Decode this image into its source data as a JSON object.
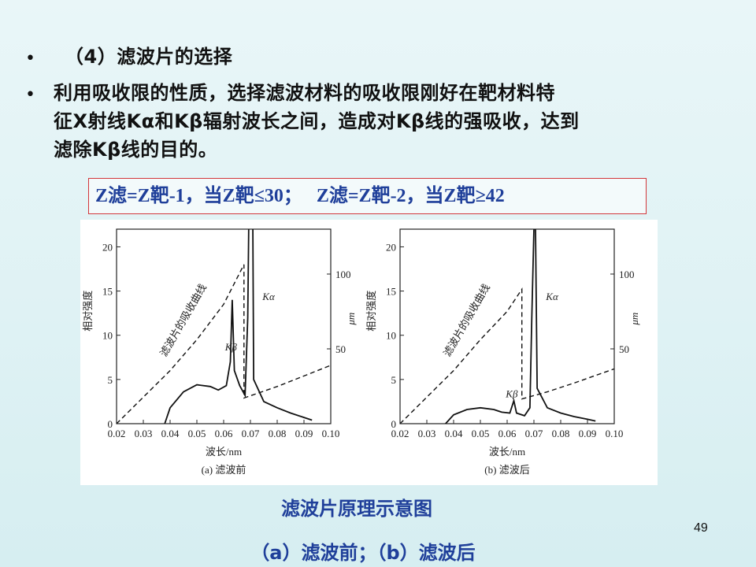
{
  "bullets": [
    {
      "text": "（4）滤波片的选择"
    },
    {
      "lines": [
        "利用吸收限的性质，选择滤波材料的吸收限刚好在靶材料特",
        "征X射线Kα和Kβ辐射波长之间，造成对Kβ线的强吸收，达到",
        "滤除Kβ线的目的。"
      ]
    }
  ],
  "formula": {
    "part1": "Z滤=Z靶-1，当Z靶≤30；",
    "part2": "Z滤=Z靶-2，当Z靶≥42"
  },
  "caption": {
    "title": "滤波片原理示意图",
    "subtitle": "（a）滤波前；（b）滤波后"
  },
  "page_number": "49",
  "chart_data": [
    {
      "type": "line",
      "panel_label": "(a) 滤波前",
      "xlabel": "波长/nm",
      "ylabel_left": "相对强度",
      "ylabel_right": "μm",
      "x_ticks": [
        "0.02",
        "0.03",
        "0.04",
        "0.05",
        "0.06",
        "0.07",
        "0.08",
        "0.09",
        "0.10"
      ],
      "y_ticks_left": [
        "0",
        "5",
        "10",
        "15",
        "20"
      ],
      "y_ticks_right": [
        "50",
        "100"
      ],
      "xlim": [
        0.02,
        0.1
      ],
      "ylim_left": [
        0,
        22
      ],
      "ylim_right": [
        0,
        130
      ],
      "annotations": {
        "curve_label": "滤波片的吸收曲线",
        "k_alpha": "Kα",
        "k_beta": "Kβ"
      },
      "series": [
        {
          "style": "solid",
          "points": [
            [
              0.038,
              0
            ],
            [
              0.04,
              1.8
            ],
            [
              0.045,
              3.6
            ],
            [
              0.05,
              4.4
            ],
            [
              0.055,
              4.2
            ],
            [
              0.058,
              3.8
            ],
            [
              0.061,
              4.3
            ],
            [
              0.0625,
              7
            ],
            [
              0.0632,
              14
            ],
            [
              0.064,
              6
            ],
            [
              0.066,
              4.3
            ],
            [
              0.068,
              3.2
            ],
            [
              0.069,
              12
            ],
            [
              0.07,
              40
            ],
            [
              0.0706,
              40
            ],
            [
              0.0712,
              5
            ],
            [
              0.075,
              2.5
            ],
            [
              0.08,
              1.8
            ],
            [
              0.085,
              1.2
            ],
            [
              0.09,
              0.7
            ],
            [
              0.093,
              0.4
            ]
          ]
        },
        {
          "style": "dashed",
          "points": [
            [
              0.02,
              0
            ],
            [
              0.03,
              3
            ],
            [
              0.04,
              6
            ],
            [
              0.05,
              9.5
            ],
            [
              0.06,
              13.5
            ],
            [
              0.0676,
              18
            ],
            [
              0.0676,
              2.9
            ],
            [
              0.08,
              4.2
            ],
            [
              0.09,
              5.4
            ],
            [
              0.1,
              6.6
            ]
          ]
        }
      ]
    },
    {
      "type": "line",
      "panel_label": "(b) 滤波后",
      "xlabel": "波长/nm",
      "ylabel_left": "相对强度",
      "ylabel_right": "μm",
      "x_ticks": [
        "0.02",
        "0.03",
        "0.04",
        "0.05",
        "0.06",
        "0.07",
        "0.08",
        "0.09",
        "0.10"
      ],
      "y_ticks_left": [
        "0",
        "5",
        "10",
        "15",
        "20"
      ],
      "y_ticks_right": [
        "50",
        "100"
      ],
      "xlim": [
        0.02,
        0.1
      ],
      "ylim_left": [
        0,
        22
      ],
      "ylim_right": [
        0,
        130
      ],
      "annotations": {
        "curve_label": "滤波片的吸收曲线",
        "k_alpha": "Kα",
        "k_beta": "Kβ"
      },
      "series": [
        {
          "style": "solid",
          "points": [
            [
              0.037,
              0
            ],
            [
              0.04,
              1.0
            ],
            [
              0.045,
              1.6
            ],
            [
              0.05,
              1.8
            ],
            [
              0.055,
              1.6
            ],
            [
              0.058,
              1.3
            ],
            [
              0.061,
              1.2
            ],
            [
              0.0625,
              2.6
            ],
            [
              0.0635,
              1.2
            ],
            [
              0.0665,
              0.9
            ],
            [
              0.0685,
              1.8
            ],
            [
              0.0692,
              12
            ],
            [
              0.07,
              22
            ],
            [
              0.0706,
              22
            ],
            [
              0.0712,
              4
            ],
            [
              0.075,
              1.8
            ],
            [
              0.08,
              1.2
            ],
            [
              0.085,
              0.8
            ],
            [
              0.09,
              0.5
            ],
            [
              0.093,
              0.3
            ]
          ]
        },
        {
          "style": "dashed",
          "points": [
            [
              0.02,
              0
            ],
            [
              0.03,
              3
            ],
            [
              0.04,
              6
            ],
            [
              0.05,
              9.5
            ],
            [
              0.06,
              12.7
            ],
            [
              0.0655,
              15.2
            ],
            [
              0.0655,
              2.8
            ],
            [
              0.075,
              3.6
            ],
            [
              0.085,
              4.6
            ],
            [
              0.1,
              6.2
            ]
          ]
        }
      ]
    }
  ]
}
